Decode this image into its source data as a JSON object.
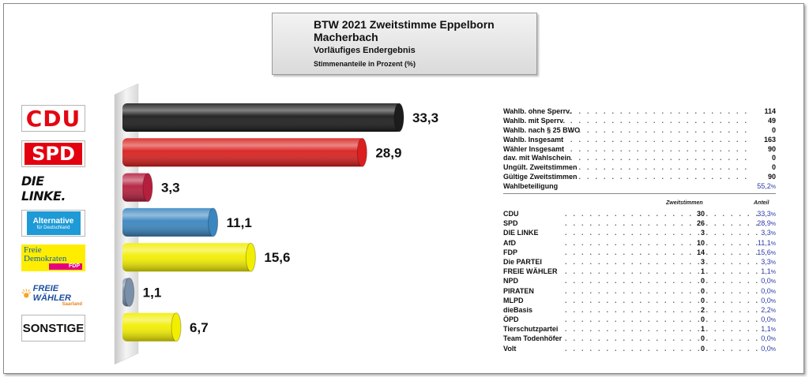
{
  "title": {
    "line1": "BTW 2021 Zweitstimme Eppelborn",
    "line2": "Macherbach",
    "line3": "Vorläufiges Endergebnis",
    "line4": "Stimmenanteile in Prozent (%)"
  },
  "logos": {
    "cdu": "CDU",
    "spd": "SPD",
    "linke": "DIE LINKE.",
    "afd_main": "Alternative",
    "afd_sub": "für Deutschland",
    "fdp_l1": "Freie",
    "fdp_l2": "Demokraten",
    "fdp_bar": "FDP",
    "fw_main": "FREIE WÄHLER",
    "fw_sub": "Saarland",
    "sonstige": "SONSTIGE"
  },
  "chart_data": {
    "type": "bar",
    "orientation": "horizontal",
    "categories": [
      "CDU",
      "SPD",
      "DIE LINKE",
      "AfD",
      "FDP",
      "FREIE WÄHLER",
      "SONSTIGE"
    ],
    "values": [
      33.3,
      28.9,
      3.3,
      11.1,
      15.6,
      1.1,
      6.7
    ],
    "value_labels": [
      "33,3",
      "28,9",
      "3,3",
      "11,1",
      "15,6",
      "1,1",
      "6,7"
    ],
    "colors": [
      "#1c1c1c",
      "#d9201e",
      "#b51f3e",
      "#3a86c0",
      "#f2ee00",
      "#7a8fa8",
      "#f2ee00"
    ],
    "xlim": [
      0,
      40
    ],
    "title": "BTW 2021 Zweitstimme Eppelborn",
    "xlabel": "",
    "ylabel": ""
  },
  "stats": [
    {
      "label": "Wahlb. ohne Sperrv.",
      "value": "114"
    },
    {
      "label": "Wahlb. mit Sperrv.",
      "value": "49"
    },
    {
      "label": "Wahlb. nach § 25 BWO",
      "value": "0"
    },
    {
      "label": "Wahlb. Insgesamt",
      "value": "163"
    },
    {
      "label": "Wähler Insgesamt",
      "value": "90"
    },
    {
      "label": "dav. mit Wahlschein",
      "value": "0"
    },
    {
      "label": "Ungült. Zweitstimmen",
      "value": "0"
    },
    {
      "label": "Gültige Zweitstimmen",
      "value": "90"
    }
  ],
  "turnout": {
    "label": "Wahlbeteiligung",
    "value": "55,2",
    "unit": "%"
  },
  "columns": {
    "votes": "Zweitstimmen",
    "share": "Anteil"
  },
  "parties": [
    {
      "name": "CDU",
      "votes": "30",
      "share": "33,3"
    },
    {
      "name": "SPD",
      "votes": "26",
      "share": "28,9"
    },
    {
      "name": "DIE LINKE",
      "votes": "3",
      "share": "3,3"
    },
    {
      "name": "AfD",
      "votes": "10",
      "share": "11,1"
    },
    {
      "name": "FDP",
      "votes": "14",
      "share": "15,6"
    },
    {
      "name": "Die PARTEI",
      "votes": "3",
      "share": "3,3"
    },
    {
      "name": "FREIE WÄHLER",
      "votes": "1",
      "share": "1,1"
    },
    {
      "name": "NPD",
      "votes": "0",
      "share": "0,0"
    },
    {
      "name": "PIRATEN",
      "votes": "0",
      "share": "0,0"
    },
    {
      "name": "MLPD",
      "votes": "0",
      "share": "0,0"
    },
    {
      "name": "dieBasis",
      "votes": "2",
      "share": "2,2"
    },
    {
      "name": "ÖPD",
      "votes": "0",
      "share": "0,0"
    },
    {
      "name": "Tierschutzpartei",
      "votes": "1",
      "share": "1,1"
    },
    {
      "name": "Team Todenhöfer",
      "votes": "0",
      "share": "0,0"
    },
    {
      "name": "Volt",
      "votes": "0",
      "share": "0,0"
    }
  ],
  "percent_sign": "%"
}
